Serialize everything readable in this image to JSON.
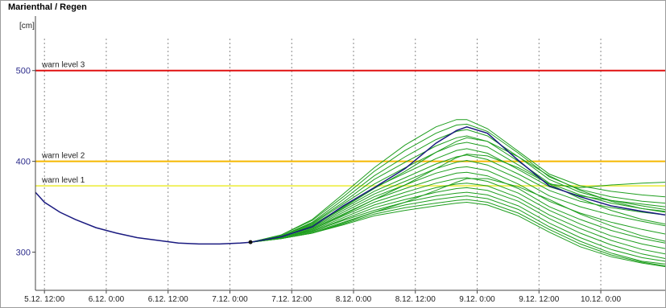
{
  "chart_data": {
    "type": "line",
    "title": "Marienthal / Regen",
    "ylabel": "[cm]",
    "xlabel": "",
    "ylim": [
      258,
      560
    ],
    "xlim": [
      -1.75,
      120.5
    ],
    "ytick_values": [
      300,
      400,
      500
    ],
    "xticks": [
      {
        "t": 0,
        "label": "5.12. 12:00"
      },
      {
        "t": 12,
        "label": "6.12. 0:00"
      },
      {
        "t": 24,
        "label": "6.12. 12:00"
      },
      {
        "t": 36,
        "label": "7.12. 0:00"
      },
      {
        "t": 48,
        "label": "7.12. 12:00"
      },
      {
        "t": 60,
        "label": "8.12. 0:00"
      },
      {
        "t": 72,
        "label": "8.12. 12:00"
      },
      {
        "t": 84,
        "label": "9.12. 0:00"
      },
      {
        "t": 96,
        "label": "9.12. 12:00"
      },
      {
        "t": 108,
        "label": "10.12. 0:00"
      }
    ],
    "grid": "vertical dotted",
    "warn_levels": [
      {
        "label": "warn level 3",
        "value": 500,
        "color": "#e01010"
      },
      {
        "label": "warn level 2",
        "value": 400,
        "color": "#f5b800"
      },
      {
        "label": "warn level 1",
        "value": 373,
        "color": "#f0f060"
      }
    ],
    "colors": {
      "observed": "#1a1a80",
      "ensemble": "#1e9e1e"
    },
    "observed": {
      "t": [
        -1.75,
        0,
        3,
        6,
        10,
        14,
        18,
        22,
        26,
        30,
        34,
        38,
        40
      ],
      "v": [
        366,
        355,
        344,
        336,
        327,
        321,
        316,
        313,
        310,
        309,
        309,
        310,
        311
      ]
    },
    "start": {
      "t": 40,
      "v": 311
    },
    "forecast_t": [
      40,
      46,
      52,
      58,
      64,
      70,
      76,
      80,
      82,
      86,
      92,
      98,
      104,
      110,
      116,
      120.5
    ],
    "main_forecast": [
      311,
      317,
      328,
      351,
      371,
      392,
      420,
      434,
      438,
      431,
      401,
      373,
      361,
      351,
      345,
      341
    ],
    "ensemble": [
      [
        311,
        319,
        336,
        364,
        393,
        418,
        438,
        446,
        446,
        436,
        411,
        386,
        373,
        367,
        363,
        361
      ],
      [
        311,
        319,
        335,
        361,
        389,
        412,
        431,
        440,
        441,
        433,
        409,
        383,
        369,
        361,
        356,
        354
      ],
      [
        311,
        318,
        333,
        358,
        384,
        405,
        424,
        433,
        435,
        428,
        405,
        380,
        366,
        357,
        351,
        347
      ],
      [
        311,
        318,
        332,
        355,
        380,
        399,
        417,
        426,
        428,
        422,
        400,
        376,
        363,
        354,
        348,
        345
      ],
      [
        311,
        318,
        331,
        353,
        375,
        393,
        410,
        419,
        421,
        416,
        396,
        375,
        371,
        374,
        376,
        377
      ],
      [
        311,
        317,
        330,
        350,
        371,
        387,
        403,
        412,
        414,
        409,
        391,
        372,
        362,
        357,
        353,
        350
      ],
      [
        311,
        317,
        329,
        348,
        367,
        382,
        397,
        405,
        407,
        402,
        386,
        368,
        356,
        349,
        344,
        341
      ],
      [
        311,
        317,
        328,
        346,
        364,
        378,
        392,
        399,
        401,
        396,
        381,
        362,
        350,
        341,
        334,
        329
      ],
      [
        311,
        317,
        327,
        344,
        361,
        374,
        387,
        393,
        394,
        390,
        375,
        356,
        343,
        333,
        325,
        320
      ],
      [
        311,
        316,
        326,
        342,
        358,
        370,
        381,
        387,
        388,
        384,
        370,
        350,
        336,
        324,
        315,
        310
      ],
      [
        311,
        316,
        325,
        340,
        355,
        366,
        376,
        381,
        382,
        378,
        365,
        346,
        331,
        318,
        309,
        304
      ],
      [
        311,
        316,
        324,
        338,
        352,
        362,
        371,
        375,
        376,
        373,
        360,
        341,
        326,
        313,
        303,
        298
      ],
      [
        311,
        316,
        323,
        336,
        349,
        358,
        366,
        370,
        371,
        368,
        356,
        337,
        321,
        308,
        298,
        293
      ],
      [
        311,
        316,
        323,
        335,
        346,
        355,
        362,
        365,
        366,
        363,
        351,
        332,
        316,
        303,
        294,
        290
      ],
      [
        311,
        315,
        322,
        333,
        344,
        352,
        358,
        361,
        362,
        359,
        347,
        328,
        312,
        299,
        290,
        287
      ],
      [
        311,
        315,
        321,
        331,
        342,
        349,
        354,
        357,
        358,
        355,
        343,
        325,
        309,
        297,
        289,
        285
      ],
      [
        311,
        315,
        321,
        330,
        340,
        346,
        351,
        354,
        355,
        352,
        340,
        322,
        306,
        295,
        288,
        284
      ],
      [
        311,
        315,
        321,
        332,
        344,
        355,
        368,
        377,
        381,
        381,
        372,
        358,
        342,
        329,
        318,
        312
      ],
      [
        311,
        316,
        325,
        341,
        358,
        374,
        392,
        404,
        408,
        406,
        393,
        375,
        359,
        346,
        336,
        331
      ],
      [
        311,
        317,
        329,
        349,
        370,
        389,
        410,
        422,
        426,
        422,
        405,
        384,
        368,
        356,
        348,
        344
      ]
    ]
  }
}
